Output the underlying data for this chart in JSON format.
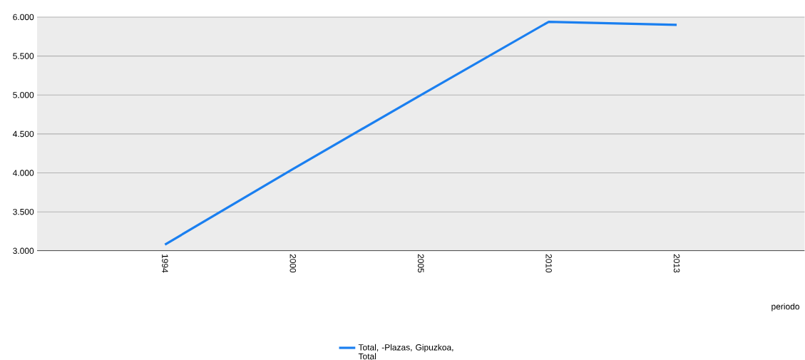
{
  "chart_data": {
    "type": "line",
    "xlabel": "periodo",
    "categories": [
      "1994",
      "2000",
      "2005",
      "2010",
      "2013"
    ],
    "series": [
      {
        "name": "Total, -Plazas, Gipuzkoa, Total",
        "color": "#1a7ff0",
        "values": [
          3080,
          4050,
          5000,
          5940,
          5900
        ]
      }
    ],
    "ylim": [
      3000,
      6000
    ],
    "yticks": [
      {
        "value": 3000,
        "label": "3.000"
      },
      {
        "value": 3500,
        "label": "3.500"
      },
      {
        "value": 4000,
        "label": "4.000"
      },
      {
        "value": 4500,
        "label": "4.500"
      },
      {
        "value": 5000,
        "label": "5.000"
      },
      {
        "value": 5500,
        "label": "5.500"
      },
      {
        "value": 6000,
        "label": "6.000"
      }
    ],
    "grid": "y",
    "legend": "bottom",
    "marker": "none",
    "line_style": "solid"
  }
}
